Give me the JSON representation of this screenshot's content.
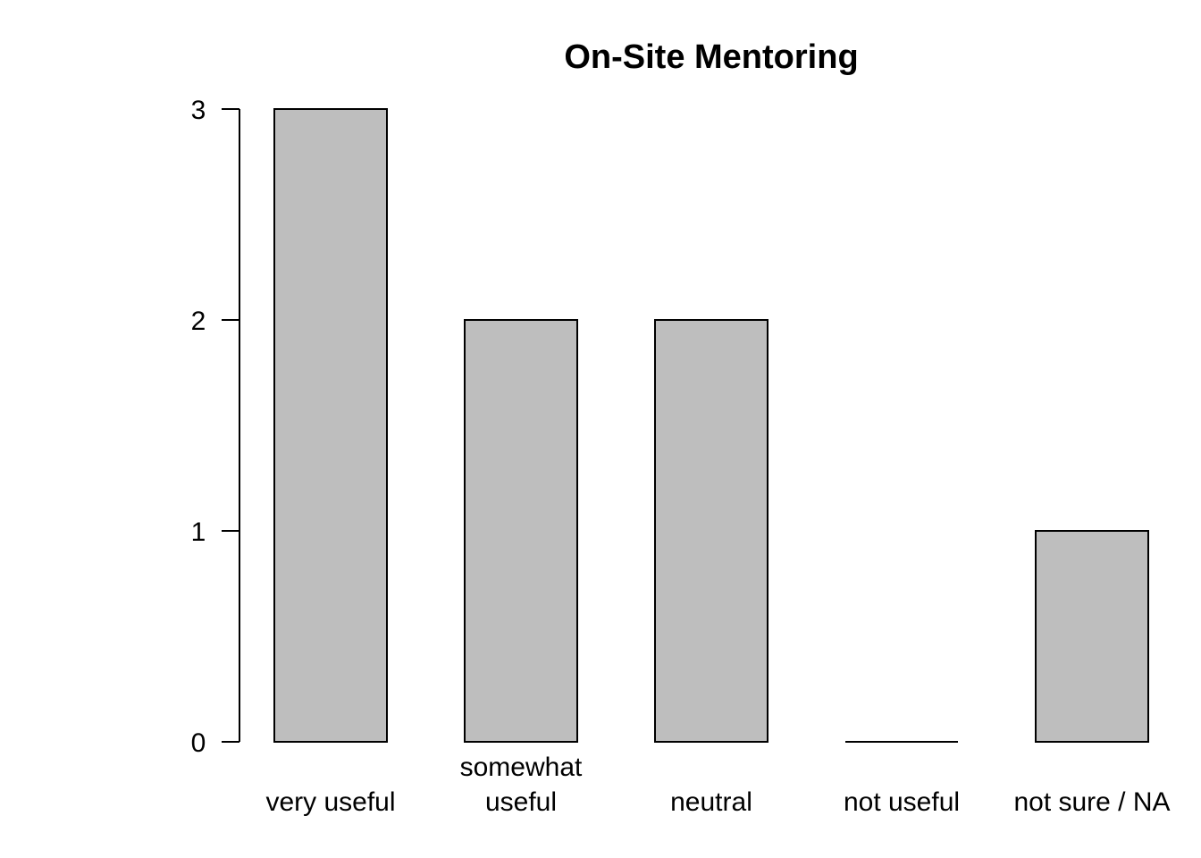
{
  "chart_data": {
    "type": "bar",
    "title": "On-Site Mentoring",
    "categories": [
      [
        "very useful"
      ],
      [
        "somewhat",
        "useful"
      ],
      [
        "neutral"
      ],
      [
        "not useful"
      ],
      [
        "not sure / NA"
      ]
    ],
    "values": [
      3,
      2,
      2,
      0,
      1
    ],
    "ylim": [
      0,
      3
    ],
    "yticks": [
      0,
      1,
      2,
      3
    ],
    "xlabel": "",
    "ylabel": "",
    "grid": false,
    "colors": {
      "bar_fill": "#bebebe",
      "bar_stroke": "#000000"
    }
  }
}
